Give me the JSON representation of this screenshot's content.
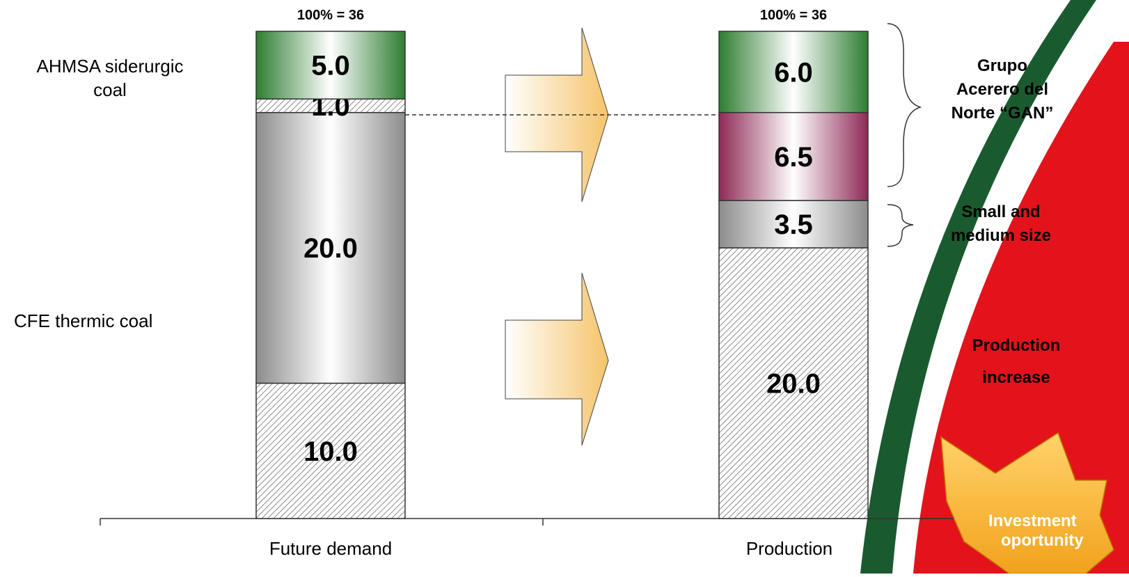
{
  "chart_data": {
    "type": "bar",
    "stacked": true,
    "categories": [
      "Future demand",
      "Production"
    ],
    "totals": [
      "100% = 36",
      "100% = 36"
    ],
    "bars": [
      {
        "category": "Future demand",
        "segments": [
          {
            "value": 10.0,
            "label": "10.0",
            "fill": "hatch"
          },
          {
            "value": 20.0,
            "label": "20.0",
            "fill": "gray"
          },
          {
            "value": 1.0,
            "label": "1.0",
            "fill": "hatch"
          },
          {
            "value": 5.0,
            "label": "5.0",
            "fill": "green"
          }
        ]
      },
      {
        "category": "Production",
        "segments": [
          {
            "value": 20.0,
            "label": "20.0",
            "fill": "hatch"
          },
          {
            "value": 3.5,
            "label": "3.5",
            "fill": "gray"
          },
          {
            "value": 6.5,
            "label": "6.5",
            "fill": "maroon"
          },
          {
            "value": 6.0,
            "label": "6.0",
            "fill": "green"
          }
        ]
      }
    ],
    "left_labels": [
      "AHMSA siderurgic coal",
      "CFE thermic coal"
    ],
    "right_labels": [
      "Grupo Acerero del Norte “GAN”",
      "Small and medium size",
      "Production increase"
    ],
    "callout": "Investment oportunity",
    "colors": {
      "green": "#2e7d32",
      "gray": "#8c8c8c",
      "maroon": "#8e2a55",
      "arrow": "#f5c46a",
      "red": "#e3131b",
      "darkgreen": "#1a5a2f"
    }
  },
  "text": {
    "left_top_1": "AHMSA siderurgic",
    "left_top_2": "coal",
    "left_bottom": "CFE thermic coal",
    "gan_1": "Grupo",
    "gan_2": "Acerero del",
    "gan_3": "Norte “GAN”",
    "small_1": "Small and",
    "small_2": "medium size",
    "prod_1": "Production",
    "prod_2": "increase",
    "callout_1": "Investment",
    "callout_2": "oportunity"
  }
}
